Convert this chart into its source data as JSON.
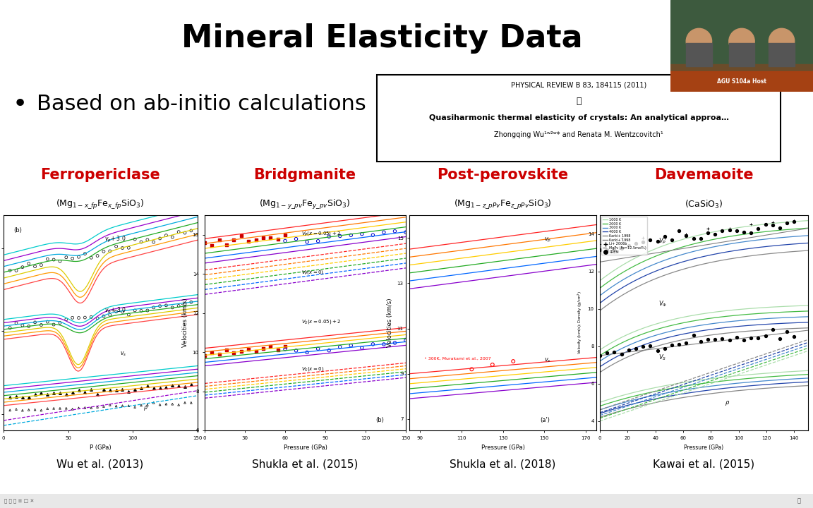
{
  "title": "Mineral Elasticity Data",
  "title_fontsize": 32,
  "title_fontweight": "bold",
  "bg_color": "#ffffff",
  "bullet_text": "Based on ab-initio calculations",
  "bullet_fontsize": 22,
  "journal_box": {
    "line1": "PHYSICAL REVIEW B 83, 184115 (2011)",
    "symbol": "௹",
    "line3": "Quasiharmonic thermal elasticity of crystals: An analytical approa…",
    "line4": "Zhongqing Wu¹ʷ²ʷ* and Renata M. Wentzcovitch¹"
  },
  "mineral_names": [
    "Ferropericlase",
    "Bridgmanite",
    "Post-perovskite",
    "Davemaoite"
  ],
  "mineral_formulas": [
    "(Mg$_{1-x\\_fp}$Fe$_{x\\_fp}$SiO$_3$)",
    "(Mg$_{1-y\\_pv}$Fe$_{y\\_pv}$SiO$_3$)",
    "(Mg$_{1-z\\_pPv}$Fe$_{z\\_pPv}$SiO$_3$)",
    "(CaSiO$_3$)"
  ],
  "citations": [
    "Wu et al. (2013)",
    "Shukla et al. (2015)",
    "Shukla et al. (2018)",
    "Kawai et al. (2015)"
  ],
  "name_color": "#cc0000",
  "webcam_label": "AGU S104a Host"
}
